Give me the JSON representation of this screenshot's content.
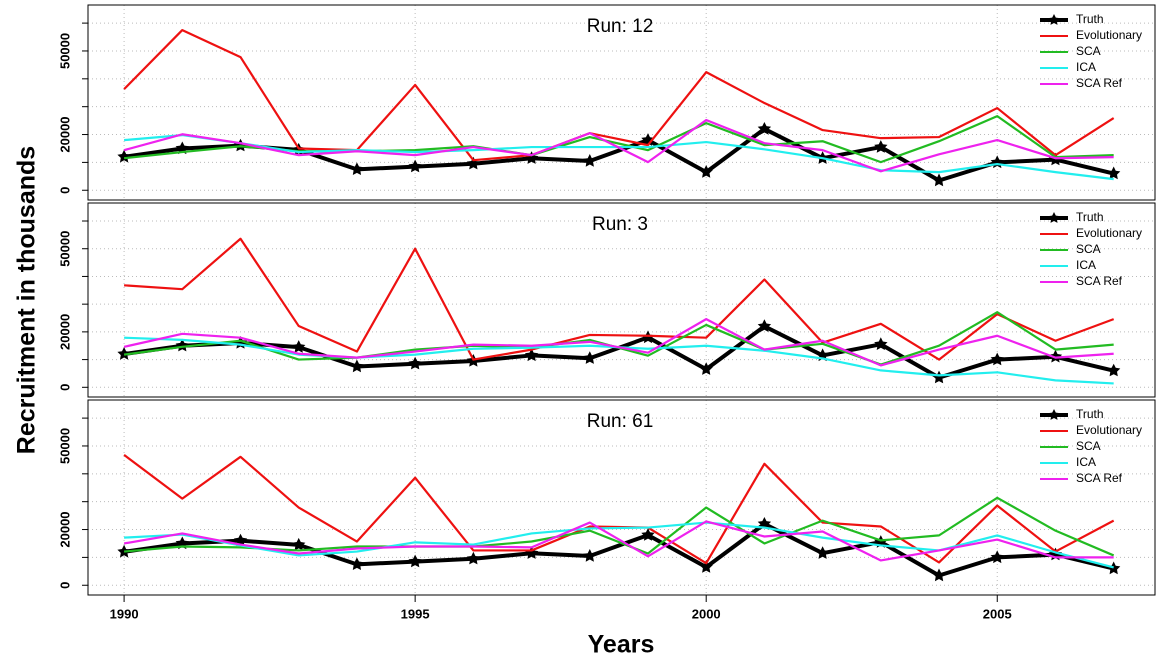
{
  "chart_data": [
    {
      "type": "line",
      "title": "Run: 12",
      "legend": "topright",
      "grid": true,
      "x": [
        1990,
        1991,
        1992,
        1993,
        1994,
        1995,
        1996,
        1997,
        1998,
        1999,
        2000,
        2001,
        2002,
        2003,
        2004,
        2005,
        2006,
        2007
      ],
      "xlim": [
        1989.38,
        2007.71
      ],
      "ylim": [
        -3500,
        66500
      ],
      "yticks": [
        0,
        20000,
        50000
      ],
      "minor_yticks": [
        0,
        10000,
        20000,
        30000,
        40000,
        50000,
        60000
      ],
      "series": [
        {
          "name": "Truth",
          "color": "#000000",
          "marker": "star",
          "values": [
            12000,
            15000,
            16000,
            14500,
            7500,
            8500,
            9500,
            11500,
            10500,
            18000,
            6500,
            22000,
            11500,
            15500,
            3500,
            10000,
            11000,
            6000
          ]
        },
        {
          "name": "Evolutionary",
          "color": "#ee1111",
          "values": [
            36300,
            57500,
            47800,
            15000,
            14400,
            37800,
            10800,
            12600,
            20500,
            16200,
            42400,
            31300,
            21600,
            18700,
            19100,
            29500,
            12600,
            25900
          ]
        },
        {
          "name": "SCA",
          "color": "#22bb22",
          "values": [
            11500,
            13700,
            15800,
            14000,
            14000,
            14400,
            15800,
            12600,
            19100,
            14400,
            24100,
            16200,
            17600,
            10100,
            17600,
            26600,
            11900,
            12600
          ]
        },
        {
          "name": "ICA",
          "color": "#22eeee",
          "values": [
            18000,
            19800,
            16900,
            13700,
            14400,
            13700,
            14400,
            15500,
            15500,
            15500,
            17300,
            14700,
            11500,
            7200,
            6500,
            9400,
            6500,
            4000
          ]
        },
        {
          "name": "SCA Ref",
          "color": "#ee22ee",
          "values": [
            14400,
            20100,
            16900,
            12600,
            14000,
            12600,
            15500,
            12600,
            20500,
            10100,
            25200,
            16900,
            14400,
            6800,
            12900,
            18000,
            11500,
            11900
          ]
        }
      ]
    },
    {
      "type": "line",
      "title": "Run: 3",
      "legend": "topright",
      "grid": true,
      "ylabel": "Recruitment in thousands",
      "x": [
        1990,
        1991,
        1992,
        1993,
        1994,
        1995,
        1996,
        1997,
        1998,
        1999,
        2000,
        2001,
        2002,
        2003,
        2004,
        2005,
        2006,
        2007
      ],
      "xlim": [
        1989.38,
        2007.71
      ],
      "ylim": [
        -3500,
        66500
      ],
      "yticks": [
        0,
        20000,
        50000
      ],
      "minor_yticks": [
        0,
        10000,
        20000,
        30000,
        40000,
        50000,
        60000
      ],
      "series": [
        {
          "name": "Truth",
          "color": "#000000",
          "marker": "star",
          "values": [
            12000,
            15000,
            16000,
            14500,
            7500,
            8500,
            9500,
            11500,
            10500,
            18000,
            6500,
            22000,
            11500,
            15500,
            3500,
            10000,
            11000,
            6000
          ]
        },
        {
          "name": "Evolutionary",
          "color": "#ee1111",
          "values": [
            36800,
            35400,
            53600,
            22100,
            12900,
            50000,
            10000,
            13600,
            18900,
            18600,
            17900,
            38900,
            16100,
            22900,
            10000,
            26400,
            16800,
            24600
          ]
        },
        {
          "name": "SCA",
          "color": "#22bb22",
          "values": [
            11800,
            14600,
            16800,
            10000,
            10700,
            13600,
            15000,
            14300,
            17100,
            11400,
            22500,
            13600,
            15700,
            8200,
            15000,
            27100,
            13600,
            15400
          ]
        },
        {
          "name": "ICA",
          "color": "#22eeee",
          "values": [
            17900,
            17100,
            15400,
            11800,
            10700,
            11800,
            13900,
            14300,
            15000,
            13900,
            15000,
            13200,
            10400,
            6100,
            4300,
            5400,
            2500,
            1400
          ]
        },
        {
          "name": "SCA Ref",
          "color": "#ee22ee",
          "values": [
            14600,
            19300,
            17900,
            12100,
            10700,
            12900,
            15400,
            15000,
            16400,
            12500,
            24600,
            13600,
            16800,
            7900,
            13600,
            18600,
            10700,
            12100
          ]
        }
      ]
    },
    {
      "type": "line",
      "title": "Run: 61",
      "legend": "topright",
      "grid": true,
      "xlabel": "Years",
      "x": [
        1990,
        1991,
        1992,
        1993,
        1994,
        1995,
        1996,
        1997,
        1998,
        1999,
        2000,
        2001,
        2002,
        2003,
        2004,
        2005,
        2006,
        2007
      ],
      "xlim": [
        1989.38,
        2007.71
      ],
      "xticks": [
        1990,
        1995,
        2000,
        2005
      ],
      "ylim": [
        -3500,
        66500
      ],
      "yticks": [
        0,
        20000,
        50000
      ],
      "minor_yticks": [
        0,
        10000,
        20000,
        30000,
        40000,
        50000,
        60000
      ],
      "series": [
        {
          "name": "Truth",
          "color": "#000000",
          "marker": "star",
          "values": [
            12000,
            15000,
            16000,
            14500,
            7500,
            8500,
            9500,
            11500,
            10500,
            18000,
            6500,
            22000,
            11500,
            15500,
            3500,
            10000,
            11000,
            6000
          ]
        },
        {
          "name": "Evolutionary",
          "color": "#ee1111",
          "values": [
            46800,
            31100,
            46100,
            27900,
            15700,
            38600,
            12500,
            12500,
            21100,
            20700,
            7900,
            43600,
            22500,
            21100,
            8200,
            28600,
            12100,
            23200
          ]
        },
        {
          "name": "SCA",
          "color": "#22bb22",
          "values": [
            12100,
            13900,
            13600,
            12500,
            13900,
            13900,
            13900,
            15700,
            19600,
            11400,
            27900,
            15000,
            23200,
            16100,
            17900,
            31400,
            19600,
            10700
          ]
        },
        {
          "name": "ICA",
          "color": "#22eeee",
          "values": [
            17100,
            18200,
            14300,
            10700,
            12100,
            15400,
            14600,
            18600,
            20400,
            20700,
            22500,
            20700,
            17100,
            14300,
            12500,
            17900,
            11800,
            6400
          ]
        },
        {
          "name": "SCA Ref",
          "color": "#ee22ee",
          "values": [
            15000,
            18600,
            14600,
            11400,
            13200,
            13900,
            13900,
            13600,
            22500,
            10400,
            22900,
            17500,
            19300,
            8900,
            12500,
            16400,
            10000,
            10000
          ]
        }
      ]
    }
  ]
}
